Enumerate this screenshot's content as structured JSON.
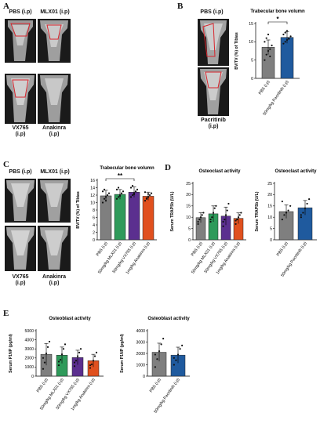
{
  "panelA": {
    "letter": "A",
    "label_tl": "PBS (i.p)",
    "label_tr": "MLX01 (i.p)",
    "label_bl": "VX765\n(i.p)",
    "label_br": "Anakinra\n(i.p)"
  },
  "panelB": {
    "letter": "B",
    "label_top": "PBS (i.p)",
    "label_bottom": "Pacritinib\n(i.p)"
  },
  "panelC": {
    "letter": "C",
    "label_tl": "PBS (i.p)",
    "label_tr": "MLX01 (i.p)",
    "label_bl": "VX765\n(i.p)",
    "label_br": "Anakinra\n(i.p)"
  },
  "panelD": {
    "letter": "D"
  },
  "panelE": {
    "letter": "E"
  },
  "colors": {
    "pbs": "#7f7f7f",
    "mlx01": "#2e9a5a",
    "vx765": "#5b2f8f",
    "anakinra": "#e0501e",
    "pacritinib": "#1f5a9e",
    "annotation_red": "#d8242c"
  },
  "chart_data": [
    {
      "id": "B",
      "type": "bar",
      "title": "Trabecular bone volumn",
      "ylabel": "BV/TV (%) of Tibias",
      "ylim": [
        0,
        15
      ],
      "yticks": [
        "0",
        "5",
        "10",
        "15"
      ],
      "categories": [
        "PBS (i.p)",
        "50mg/kg Pacritinib (i.p)"
      ],
      "values": [
        8.5,
        11.2
      ],
      "errors": [
        2.0,
        1.6
      ],
      "bar_colors": [
        "#7f7f7f",
        "#1f5a9e"
      ],
      "significance": "*",
      "points": [
        [
          5,
          6.5,
          7.5,
          8,
          9,
          10,
          11,
          12,
          6
        ],
        [
          9.5,
          10,
          10.5,
          11,
          11.5,
          12,
          12.5,
          13,
          10.8
        ]
      ]
    },
    {
      "id": "C",
      "type": "bar",
      "title": "Trabecular bone volumn",
      "ylabel": "BV/TV (%) of Tibias",
      "ylim": [
        0,
        16
      ],
      "yticks": [
        "0",
        "2",
        "4",
        "6",
        "8",
        "10",
        "12",
        "14",
        "16"
      ],
      "categories": [
        "PBS (i.p)",
        "50mg/kg MLX01 (i.p)",
        "50mg/kg VX765 (i.p)",
        "1mg/kg Anakinra (i.p)"
      ],
      "values": [
        11.8,
        12.2,
        12.8,
        11.7
      ],
      "errors": [
        1.5,
        1.3,
        1.4,
        1.1
      ],
      "bar_colors": [
        "#7f7f7f",
        "#2e9a5a",
        "#5b2f8f",
        "#e0501e"
      ],
      "significance": "**",
      "points": [
        [
          10,
          11,
          11.5,
          12,
          12.5,
          13,
          13.5,
          10.5
        ],
        [
          11,
          11.5,
          12,
          12.5,
          13,
          13.5,
          14,
          11.8
        ],
        [
          11.5,
          12,
          12.5,
          13,
          13.5,
          14,
          14.5,
          12.2
        ],
        [
          10.5,
          11,
          11.5,
          12,
          12.5,
          12.8,
          11.2,
          12.3
        ]
      ]
    },
    {
      "id": "D-left",
      "type": "bar",
      "title": "Osteoclast  activity",
      "ylabel": "Serum TRAP5b (U/L)",
      "ylim": [
        0,
        25
      ],
      "yticks": [
        "0",
        "5",
        "10",
        "15",
        "20",
        "25"
      ],
      "categories": [
        "PBS (i.p)",
        "50mg/kg MLX01 (i.p)",
        "50mg/kg VX765 (i.p)",
        "1mg/kg Anakinra (i.p)"
      ],
      "values": [
        9.8,
        11.5,
        10.5,
        9.5
      ],
      "errors": [
        2.2,
        3.5,
        4.0,
        2.4
      ],
      "bar_colors": [
        "#7f7f7f",
        "#2e9a5a",
        "#5b2f8f",
        "#e0501e"
      ],
      "points": [
        [
          7,
          9,
          10,
          11,
          12,
          8
        ],
        [
          8,
          10,
          12,
          14,
          15,
          9
        ],
        [
          6,
          9,
          11,
          13,
          16,
          8
        ],
        [
          7,
          9,
          10,
          11,
          12,
          8.5
        ]
      ]
    },
    {
      "id": "D-right",
      "type": "bar",
      "title": "Osteoclast  activity",
      "ylabel": "Serum TRAP5b (U/L)",
      "ylim": [
        0,
        25
      ],
      "yticks": [
        "0",
        "5",
        "10",
        "15",
        "20",
        "25"
      ],
      "categories": [
        "PBS (i.p)",
        "50mg/kg Pacritinib (i.p)"
      ],
      "values": [
        12.5,
        14.2
      ],
      "errors": [
        3.0,
        3.2
      ],
      "bar_colors": [
        "#7f7f7f",
        "#1f5a9e"
      ],
      "points": [
        [
          9,
          11,
          12,
          13,
          15,
          17
        ],
        [
          10,
          12,
          14,
          16,
          18,
          11
        ]
      ]
    },
    {
      "id": "E-left",
      "type": "bar",
      "title": "Osteoblast activity",
      "ylabel": "Serum P1NP (pg/ml)",
      "ylim": [
        0,
        5000
      ],
      "yticks": [
        "0",
        "1000",
        "2000",
        "3000",
        "4000",
        "5000"
      ],
      "categories": [
        "PBS (i.p)",
        "50mg/kg MLX01 (i.p)",
        "50mg/kg VX765 (i.p)",
        "1mg/kg Anakinra (i.p)"
      ],
      "values": [
        2400,
        2300,
        2050,
        1700
      ],
      "errors": [
        1200,
        900,
        800,
        700
      ],
      "bar_colors": [
        "#7f7f7f",
        "#2e9a5a",
        "#5b2f8f",
        "#e0501e"
      ],
      "points": [
        [
          800,
          1500,
          2500,
          3200,
          3800,
          2000
        ],
        [
          1200,
          1800,
          2400,
          3000,
          3500,
          1600
        ],
        [
          1100,
          1700,
          2200,
          2600,
          3000,
          1500
        ],
        [
          900,
          1300,
          1700,
          2200,
          2600,
          1200
        ]
      ]
    },
    {
      "id": "E-right",
      "type": "bar",
      "title": "Osteoblast activity",
      "ylabel": "Serum P1NP (pg/ml)",
      "ylim": [
        0,
        4000
      ],
      "yticks": [
        "0",
        "1000",
        "2000",
        "3000",
        "4000"
      ],
      "categories": [
        "PBS (i.p)",
        "50mg/kg Pacritinib (i.p)"
      ],
      "values": [
        2100,
        1850
      ],
      "errors": [
        800,
        700
      ],
      "bar_colors": [
        "#7f7f7f",
        "#1f5a9e"
      ],
      "points": [
        [
          800,
          1500,
          2200,
          2800,
          3300,
          1900
        ],
        [
          1000,
          1400,
          1900,
          2400,
          2700,
          1600
        ]
      ]
    }
  ]
}
